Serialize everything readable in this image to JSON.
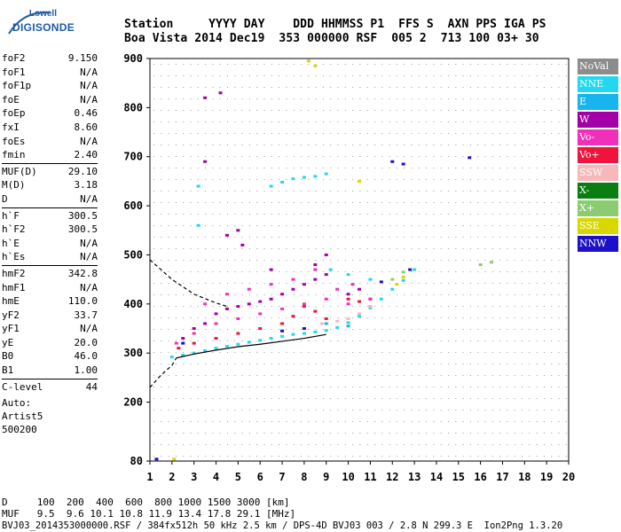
{
  "logo": {
    "line1": "Lowell",
    "line2": "DIGISONDE"
  },
  "header": {
    "line1": "Station     YYYY DAY    DDD HHMMSS P1  FFS S  AXN PPS IGA PS",
    "line2": "Boa Vista 2014 Dec19  353 000000 RSF  005 2  713 100 03+ 30"
  },
  "params": [
    {
      "k": "foF2",
      "v": "9.150"
    },
    {
      "k": "foF1",
      "v": "N/A"
    },
    {
      "k": "foF1p",
      "v": "N/A"
    },
    {
      "k": "foE",
      "v": "N/A"
    },
    {
      "k": "foEp",
      "v": "0.46"
    },
    {
      "k": "fxI",
      "v": "8.60"
    },
    {
      "k": "foEs",
      "v": "N/A"
    },
    {
      "k": "fmin",
      "v": "2.40"
    },
    {
      "k": "MUF(D)",
      "v": "29.10"
    },
    {
      "k": "M(D)",
      "v": "3.18"
    },
    {
      "k": "D",
      "v": "N/A"
    },
    {
      "k": "h`F",
      "v": "300.5"
    },
    {
      "k": "h`F2",
      "v": "300.5"
    },
    {
      "k": "h`E",
      "v": "N/A"
    },
    {
      "k": "h`Es",
      "v": "N/A"
    },
    {
      "k": "hmF2",
      "v": "342.8"
    },
    {
      "k": "hmF1",
      "v": "N/A"
    },
    {
      "k": "hmE",
      "v": "110.0"
    },
    {
      "k": "yF2",
      "v": "33.7"
    },
    {
      "k": "yF1",
      "v": "N/A"
    },
    {
      "k": "yE",
      "v": "20.0"
    },
    {
      "k": "B0",
      "v": "46.0"
    },
    {
      "k": "B1",
      "v": "1.00"
    },
    {
      "k": "C-level",
      "v": "44"
    }
  ],
  "auto": {
    "line1": "Auto:",
    "line2": "Artist5",
    "line3": "500200"
  },
  "legend": [
    {
      "label": "NoVal",
      "color": "#8c8c8c"
    },
    {
      "label": "NNE",
      "color": "#22d8f0"
    },
    {
      "label": "E",
      "color": "#18b4ee"
    },
    {
      "label": "W",
      "color": "#a400a8"
    },
    {
      "label": "Vo-",
      "color": "#f030b8"
    },
    {
      "label": "Vo+",
      "color": "#f0143c"
    },
    {
      "label": "SSW",
      "color": "#f6b8b8"
    },
    {
      "label": "X-",
      "color": "#0a7e10"
    },
    {
      "label": "X+",
      "color": "#8ccc70"
    },
    {
      "label": "SSE",
      "color": "#d8d800"
    },
    {
      "label": "NNW",
      "color": "#1c10c8"
    }
  ],
  "bottom": {
    "line1": "D     100  200  400  600  800 1000 1500 3000 [km]",
    "line2": "MUF   9.5  9.6 10.1 10.8 11.9 13.4 17.8 29.1 [MHz]",
    "line3": "BVJ03_2014353000000.RSF / 384fx512h 50 kHz 2.5 km / DPS-4D BVJ03 003 / 2.8 N 299.3 E  Ion2Png 1.3.20"
  },
  "chart_data": {
    "type": "scatter",
    "xlim": [
      1,
      20
    ],
    "ylim": [
      80,
      900
    ],
    "x_ticks": [
      1,
      2,
      3,
      4,
      5,
      6,
      7,
      8,
      9,
      10,
      11,
      12,
      13,
      14,
      15,
      16,
      17,
      18,
      19,
      20
    ],
    "y_ticks": [
      80,
      200,
      300,
      400,
      500,
      600,
      700,
      800,
      900
    ],
    "grid": true,
    "series": [
      {
        "name": "NNE",
        "color": "#22d8f0",
        "points": [
          [
            2.0,
            292
          ],
          [
            2.5,
            296
          ],
          [
            3,
            300
          ],
          [
            3.5,
            305
          ],
          [
            4,
            310
          ],
          [
            4.5,
            314
          ],
          [
            5,
            318
          ],
          [
            5.5,
            322
          ],
          [
            6,
            326
          ],
          [
            6.5,
            330
          ],
          [
            7,
            334
          ],
          [
            7.5,
            338
          ],
          [
            8,
            340
          ],
          [
            8.5,
            343
          ],
          [
            9,
            346
          ],
          [
            9.5,
            352
          ],
          [
            10,
            362
          ],
          [
            10.5,
            375
          ],
          [
            11,
            392
          ],
          [
            11.5,
            410
          ],
          [
            12,
            430
          ],
          [
            12.5,
            448
          ],
          [
            13,
            470
          ],
          [
            6.5,
            640
          ],
          [
            7,
            648
          ],
          [
            7.5,
            655
          ],
          [
            8,
            658
          ],
          [
            8.5,
            660
          ],
          [
            9,
            665
          ],
          [
            3.2,
            640
          ],
          [
            3.2,
            560
          ],
          [
            9.2,
            470
          ],
          [
            10,
            460
          ],
          [
            11,
            450
          ]
        ]
      },
      {
        "name": "W",
        "color": "#a400a8",
        "points": [
          [
            2.5,
            330
          ],
          [
            3,
            350
          ],
          [
            3.5,
            360
          ],
          [
            4,
            380
          ],
          [
            4.5,
            390
          ],
          [
            5,
            395
          ],
          [
            5.5,
            400
          ],
          [
            6,
            405
          ],
          [
            6.5,
            410
          ],
          [
            7,
            420
          ],
          [
            7.5,
            430
          ],
          [
            8,
            440
          ],
          [
            8.5,
            450
          ],
          [
            9,
            460
          ],
          [
            10,
            420
          ],
          [
            10.5,
            430
          ],
          [
            11,
            410
          ],
          [
            3.5,
            820
          ],
          [
            4.2,
            830
          ],
          [
            4.5,
            540
          ],
          [
            5,
            550
          ],
          [
            3.5,
            690
          ],
          [
            5.2,
            520
          ],
          [
            6.5,
            470
          ],
          [
            8.5,
            480
          ],
          [
            9,
            500
          ]
        ]
      },
      {
        "name": "Vo-",
        "color": "#f030b8",
        "points": [
          [
            2.2,
            320
          ],
          [
            3,
            340
          ],
          [
            4,
            360
          ],
          [
            5,
            370
          ],
          [
            6,
            380
          ],
          [
            7,
            390
          ],
          [
            8,
            400
          ],
          [
            9,
            410
          ],
          [
            10,
            400
          ],
          [
            11,
            410
          ],
          [
            3.5,
            400
          ],
          [
            4.5,
            420
          ],
          [
            5.5,
            430
          ],
          [
            6.5,
            440
          ],
          [
            7.5,
            450
          ],
          [
            8.5,
            470
          ],
          [
            9.5,
            430
          ],
          [
            10.2,
            440
          ]
        ]
      },
      {
        "name": "Vo+",
        "color": "#f0143c",
        "points": [
          [
            2.3,
            310
          ],
          [
            3,
            320
          ],
          [
            4,
            330
          ],
          [
            5,
            340
          ],
          [
            6,
            350
          ],
          [
            7,
            360
          ],
          [
            7.5,
            375
          ],
          [
            8,
            395
          ],
          [
            8.5,
            385
          ],
          [
            9,
            370
          ],
          [
            10,
            410
          ],
          [
            10.5,
            405
          ],
          [
            11,
            395
          ]
        ]
      },
      {
        "name": "SSW",
        "color": "#f6b8b8",
        "points": [
          [
            8.8,
            360
          ],
          [
            9.5,
            365
          ],
          [
            10,
            370
          ],
          [
            10.5,
            380
          ],
          [
            11,
            395
          ]
        ]
      },
      {
        "name": "X+",
        "color": "#8ccc70",
        "points": [
          [
            12.5,
            465
          ],
          [
            16,
            480
          ],
          [
            16.5,
            485
          ],
          [
            12,
            450
          ]
        ]
      },
      {
        "name": "SSE",
        "color": "#d8d800",
        "points": [
          [
            12.2,
            440
          ],
          [
            12.5,
            455
          ],
          [
            10.5,
            650
          ],
          [
            8.2,
            895
          ],
          [
            8.5,
            885
          ],
          [
            2.1,
            84
          ]
        ]
      },
      {
        "name": "NNW",
        "color": "#1c10c8",
        "points": [
          [
            12,
            690
          ],
          [
            12.5,
            685
          ],
          [
            15.5,
            698
          ],
          [
            2.5,
            320
          ],
          [
            7,
            345
          ],
          [
            8,
            350
          ],
          [
            1.3,
            84
          ],
          [
            11.5,
            445
          ],
          [
            12.8,
            470
          ]
        ]
      },
      {
        "name": "E",
        "color": "#18b4ee",
        "points": [
          [
            9,
            360
          ],
          [
            10,
            355
          ]
        ]
      }
    ],
    "profile_solid": [
      [
        2.2,
        290
      ],
      [
        3,
        298
      ],
      [
        4,
        306
      ],
      [
        5,
        313
      ],
      [
        6,
        318
      ],
      [
        7,
        324
      ],
      [
        8,
        330
      ],
      [
        9,
        338
      ]
    ],
    "profile_dashed": [
      [
        1,
        490
      ],
      [
        2,
        450
      ],
      [
        3,
        420
      ],
      [
        4,
        402
      ],
      [
        4.5,
        395
      ]
    ],
    "profile_dashed_lower": [
      [
        1,
        230
      ],
      [
        1.5,
        255
      ],
      [
        2,
        275
      ],
      [
        2.2,
        290
      ]
    ]
  }
}
